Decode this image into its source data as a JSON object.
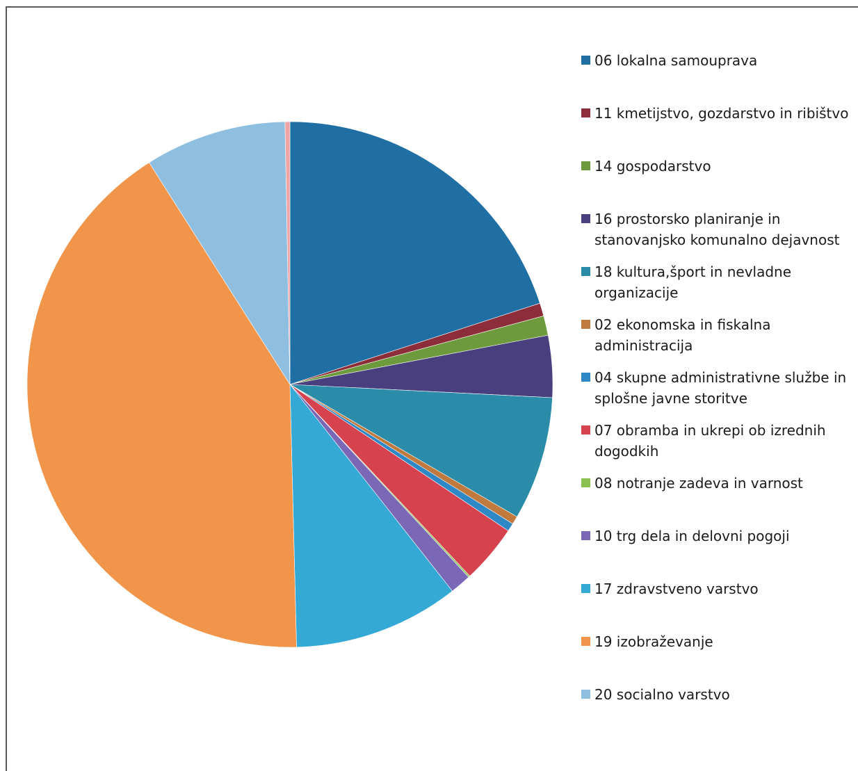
{
  "chart_data": {
    "type": "pie",
    "start_angle_deg": 0,
    "direction": "clockwise",
    "legend_position": "right",
    "slices": [
      {
        "label": "06 lokalna samouprava",
        "value": 20.0,
        "color": "#1f6fa5"
      },
      {
        "label": "11 kmetijstvo, gozdarstvo in ribištvo",
        "value": 0.8,
        "color": "#8e2d3a"
      },
      {
        "label": "14 gospodarstvo",
        "value": 1.2,
        "color": "#6d9a3c"
      },
      {
        "label": "16 prostorsko planiranje in\nstanovanjsko komunalno dejavnost",
        "value": 3.8,
        "color": "#4a3f7e"
      },
      {
        "label": "18 kultura,šport in nevladne\norganizacije",
        "value": 7.6,
        "color": "#2a8ca8"
      },
      {
        "label": "02 ekonomska in fiskalna\nadministracija",
        "value": 0.5,
        "color": "#c07a3e"
      },
      {
        "label": "04 skupne administrativne službe in\nsplošne javne storitve",
        "value": 0.5,
        "color": "#2e88c6"
      },
      {
        "label": "07 obramba in ukrepi ob izrednih\ndogodkih",
        "value": 3.6,
        "color": "#d6424e"
      },
      {
        "label": "08 notranje zadeva in varnost",
        "value": 0.1,
        "color": "#8cc152"
      },
      {
        "label": "10 trg dela in delovni pogoji",
        "value": 1.3,
        "color": "#7a68b7"
      },
      {
        "label": "17 zdravstveno varstvo",
        "value": 10.2,
        "color": "#35a9d6"
      },
      {
        "label": "19 izobraževanje",
        "value": 41.4,
        "color": "#f0954a"
      },
      {
        "label": "20 socialno varstvo",
        "value": 8.7,
        "color": "#8fbfe0"
      },
      {
        "label": "",
        "value": 0.3,
        "color": "#f0a5a5"
      }
    ]
  }
}
